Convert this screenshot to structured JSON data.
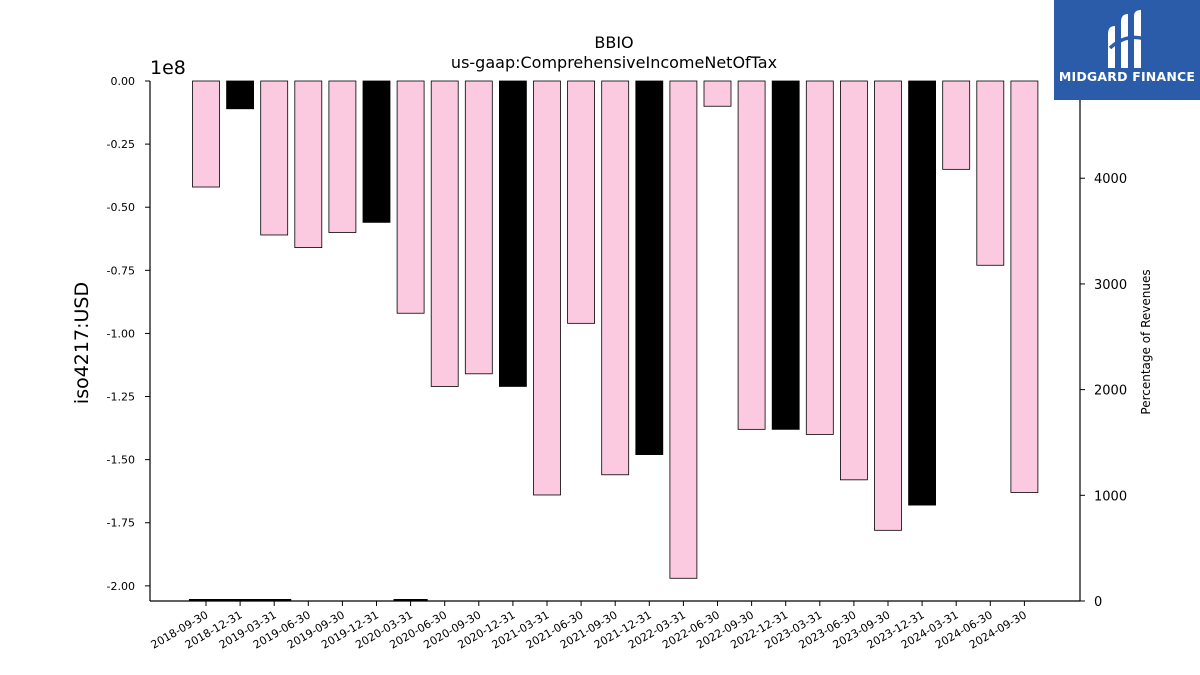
{
  "chart_data": {
    "type": "bar",
    "title": "BBIO",
    "subtitle": "us-gaap:ComprehensiveIncomeNetOfTax",
    "ylabel": "iso4217:USD",
    "y_scale_label": "1e8",
    "y2label": "Percentage of Revenues",
    "ylim": [
      -2.06,
      0.0
    ],
    "y2lim": [
      0,
      4920
    ],
    "yticks": [
      "0.00",
      "-0.25",
      "-0.50",
      "-0.75",
      "-1.00",
      "-1.25",
      "-1.50",
      "-1.75",
      "-2.00"
    ],
    "y2ticks": [
      "0",
      "1000",
      "2000",
      "3000",
      "4000"
    ],
    "grid": false,
    "categories": [
      "2018-09-30",
      "2018-12-31",
      "2019-03-31",
      "2019-06-30",
      "2019-09-30",
      "2019-12-31",
      "2020-03-31",
      "2020-06-30",
      "2020-09-30",
      "2020-12-31",
      "2021-03-31",
      "2021-06-30",
      "2021-09-30",
      "2021-12-31",
      "2022-03-31",
      "2022-06-30",
      "2022-09-30",
      "2022-12-31",
      "2023-03-31",
      "2023-06-30",
      "2023-09-30",
      "2023-12-31",
      "2024-03-31",
      "2024-06-30",
      "2024-09-30"
    ],
    "values": [
      -0.42,
      -0.11,
      -0.61,
      -0.66,
      -0.6,
      -0.56,
      -0.92,
      -1.21,
      -1.16,
      -1.21,
      -1.64,
      -0.96,
      -1.56,
      -1.48,
      -1.97,
      -0.1,
      -1.38,
      -1.38,
      -1.4,
      -1.58,
      -1.78,
      -1.68,
      -0.35,
      -0.73,
      -1.63
    ],
    "bar_types": [
      "quarter",
      "annual",
      "quarter",
      "quarter",
      "quarter",
      "annual",
      "quarter",
      "quarter",
      "quarter",
      "annual",
      "quarter",
      "quarter",
      "quarter",
      "annual",
      "quarter",
      "quarter",
      "quarter",
      "annual",
      "quarter",
      "quarter",
      "quarter",
      "annual",
      "quarter",
      "quarter",
      "quarter"
    ],
    "colors": {
      "quarter": "#fccae0",
      "annual": "#000000"
    },
    "pct_revenue_ranges": [
      [
        0,
        3,
        2
      ],
      [
        6,
        7,
        2
      ]
    ]
  },
  "logo": {
    "name": "MIDGARD FINANCE",
    "bg": "#2a5caa",
    "icon": "midgard-logo-icon"
  }
}
